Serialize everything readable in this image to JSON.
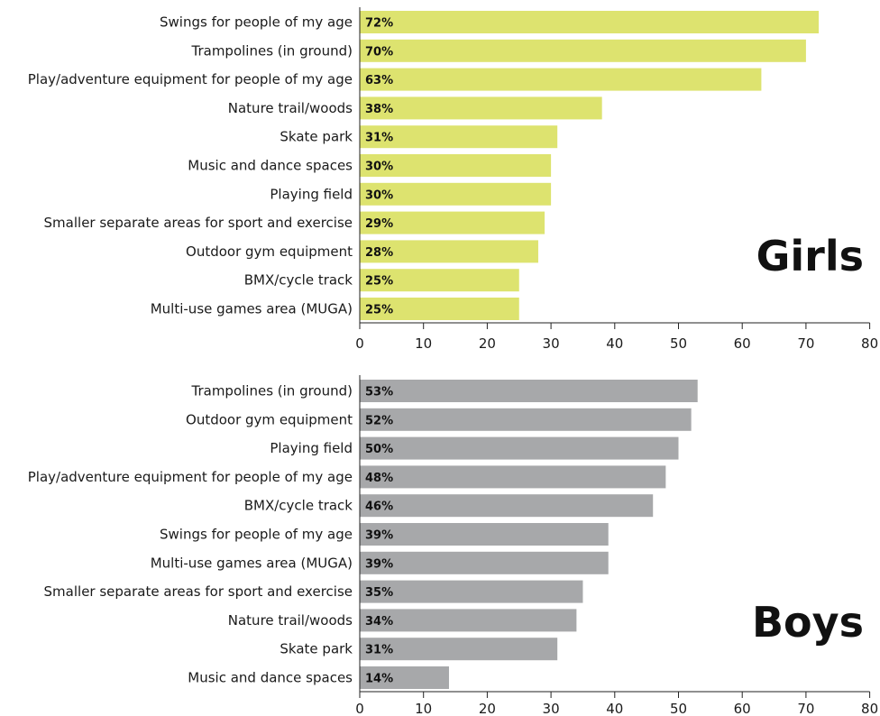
{
  "chart_data": [
    {
      "type": "bar",
      "orientation": "horizontal",
      "title": "Girls",
      "categories": [
        "Swings for people of my age",
        "Trampolines (in ground)",
        "Play/adventure equipment for people of my age",
        "Nature trail/woods",
        "Skate park",
        "Music and dance spaces",
        "Playing field",
        "Smaller separate areas for sport and exercise",
        "Outdoor gym equipment",
        "BMX/cycle track",
        "Multi-use games area (MUGA)"
      ],
      "values": [
        72,
        70,
        63,
        38,
        31,
        30,
        30,
        29,
        28,
        25,
        25
      ],
      "data_labels": [
        "72%",
        "70%",
        "63%",
        "38%",
        "31%",
        "30%",
        "30%",
        "29%",
        "28%",
        "25%",
        "25%"
      ],
      "xlim": [
        0,
        80
      ],
      "xticks": [
        0,
        10,
        20,
        30,
        40,
        50,
        60,
        70,
        80
      ],
      "bar_color": "#dde36f",
      "grid": false
    },
    {
      "type": "bar",
      "orientation": "horizontal",
      "title": "Boys",
      "categories": [
        "Trampolines (in ground)",
        "Outdoor gym equipment",
        "Playing field",
        "Play/adventure equipment for people of my age",
        "BMX/cycle track",
        "Swings for people of my age",
        "Multi-use games area (MUGA)",
        "Smaller separate areas for sport and exercise",
        "Nature trail/woods",
        "Skate park",
        "Music and dance spaces"
      ],
      "values": [
        53,
        52,
        50,
        48,
        46,
        39,
        39,
        35,
        34,
        31,
        14
      ],
      "data_labels": [
        "53%",
        "52%",
        "50%",
        "48%",
        "46%",
        "39%",
        "39%",
        "35%",
        "34%",
        "31%",
        "14%"
      ],
      "xlim": [
        0,
        80
      ],
      "xticks": [
        0,
        10,
        20,
        30,
        40,
        50,
        60,
        70,
        80
      ],
      "bar_color": "#a7a8aa",
      "grid": false
    }
  ]
}
